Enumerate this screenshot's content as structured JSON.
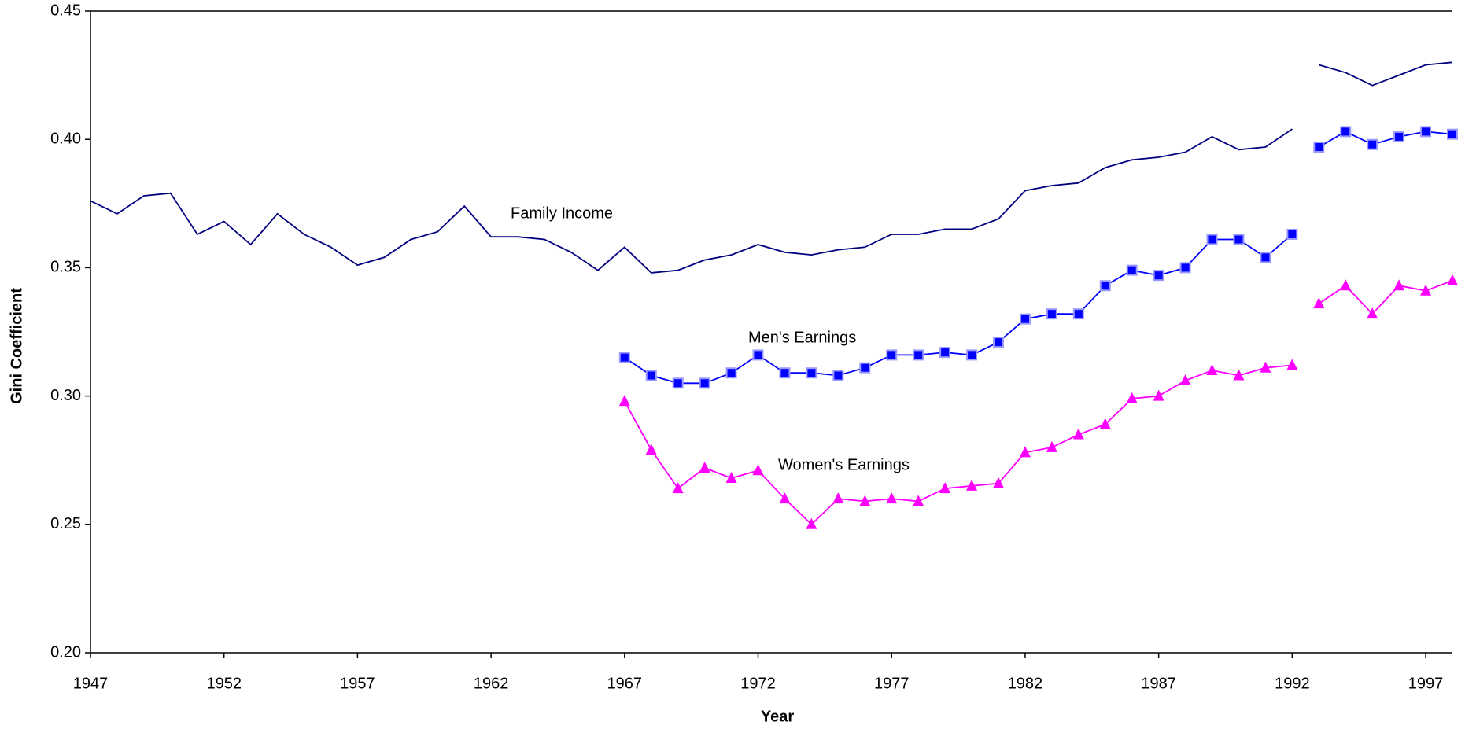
{
  "chart_data": {
    "type": "line",
    "xlabel": "Year",
    "ylabel": "Gini Coefficient",
    "xlim": [
      1947,
      1998
    ],
    "ylim": [
      0.2,
      0.45
    ],
    "xticks": [
      1947,
      1952,
      1957,
      1962,
      1967,
      1972,
      1977,
      1982,
      1987,
      1992,
      1997
    ],
    "yticks": [
      {
        "value": 0.2,
        "label": "0.20"
      },
      0.25,
      {
        "value": 0.3,
        "label": "0.30"
      },
      0.35,
      {
        "value": 0.4,
        "label": "0.40"
      },
      0.45
    ],
    "annotations": [
      "Family Income",
      "Men's Earnings",
      "Women's Earnings"
    ],
    "series": [
      {
        "color": "#000080",
        "marker": "none",
        "x": [
          1947,
          1948,
          1949,
          1950,
          1951,
          1952,
          1953,
          1954,
          1955,
          1956,
          1957,
          1958,
          1959,
          1960,
          1961,
          1962,
          1963,
          1964,
          1965,
          1966,
          1967,
          1968,
          1969,
          1970,
          1971,
          1972,
          1973,
          1974,
          1975,
          1976,
          1977,
          1978,
          1979,
          1980,
          1981,
          1982,
          1983,
          1984,
          1985,
          1986,
          1987,
          1988,
          1989,
          1990,
          1991,
          1992,
          null,
          1993,
          1994,
          1995,
          1996,
          1997,
          1998
        ],
        "values": [
          0.376,
          0.371,
          0.378,
          0.379,
          0.363,
          0.368,
          0.359,
          0.371,
          0.363,
          0.358,
          0.351,
          0.354,
          0.361,
          0.364,
          0.374,
          0.362,
          0.362,
          0.361,
          0.356,
          0.349,
          0.358,
          0.348,
          0.349,
          0.353,
          0.355,
          0.359,
          0.356,
          0.355,
          0.357,
          0.358,
          0.363,
          0.363,
          0.365,
          0.365,
          0.369,
          0.38,
          0.382,
          0.383,
          0.389,
          0.392,
          0.393,
          0.395,
          0.401,
          0.396,
          0.397,
          0.404,
          null,
          0.429,
          0.426,
          0.421,
          0.425,
          0.429,
          0.43
        ]
      },
      {
        "color": "#0000ff",
        "marker": "square",
        "x": [
          1967,
          1968,
          1969,
          1970,
          1971,
          1972,
          1973,
          1974,
          1975,
          1976,
          1977,
          1978,
          1979,
          1980,
          1981,
          1982,
          1983,
          1984,
          1985,
          1986,
          1987,
          1988,
          1989,
          1990,
          1991,
          1992,
          null,
          1993,
          1994,
          1995,
          1996,
          1997,
          1998
        ],
        "values": [
          0.315,
          0.308,
          0.305,
          0.305,
          0.309,
          0.316,
          0.309,
          0.309,
          0.308,
          0.311,
          0.316,
          0.316,
          0.317,
          0.316,
          0.321,
          0.33,
          0.332,
          0.332,
          0.343,
          0.349,
          0.347,
          0.35,
          0.361,
          0.361,
          0.354,
          0.363,
          null,
          0.397,
          0.403,
          0.398,
          0.401,
          0.403,
          0.402
        ]
      },
      {
        "color": "#ff00ff",
        "marker": "triangle",
        "x": [
          1967,
          1968,
          1969,
          1970,
          1971,
          1972,
          1973,
          1974,
          1975,
          1976,
          1977,
          1978,
          1979,
          1980,
          1981,
          1982,
          1983,
          1984,
          1985,
          1986,
          1987,
          1988,
          1989,
          1990,
          1991,
          1992,
          null,
          1993,
          1994,
          1995,
          1996,
          1997,
          1998
        ],
        "values": [
          0.298,
          0.279,
          0.264,
          0.272,
          0.268,
          0.271,
          0.26,
          0.25,
          0.26,
          0.259,
          0.26,
          0.259,
          0.264,
          0.265,
          0.266,
          0.278,
          0.28,
          0.285,
          0.289,
          0.299,
          0.3,
          0.306,
          0.31,
          0.308,
          0.311,
          0.312,
          null,
          0.336,
          0.343,
          0.332,
          0.343,
          0.341,
          0.345
        ]
      }
    ]
  }
}
